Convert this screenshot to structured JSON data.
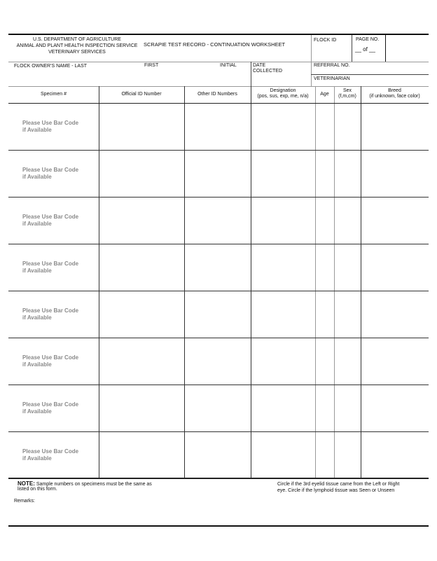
{
  "header": {
    "agency": [
      "U.S. DEPARTMENT OF AGRICULTURE",
      "ANIMAL AND PLANT HEALTH INSPECTION SERVICE",
      "VETERINARY SERVICES"
    ],
    "title": "SCRAPIE TEST RECORD - CONTINUATION WORKSHEET",
    "flock_id_label": "FLOCK  ID",
    "page_no_label": "PAGE NO.",
    "page_of": "__ of __"
  },
  "owner": {
    "last_label": "FLOCK OWNER'S NAME - LAST",
    "first_label": "FIRST",
    "initial_label": "INITIAL",
    "date_label_1": "DATE",
    "date_label_2": "COLLECTED",
    "referral_label": "REFERRAL NO.",
    "veterinarian_label": "VETERINARIAN"
  },
  "columns": [
    {
      "l1": "Specimen #",
      "l2": ""
    },
    {
      "l1": "Official ID Number",
      "l2": ""
    },
    {
      "l1": "Other ID Numbers",
      "l2": ""
    },
    {
      "l1": "Designation",
      "l2": "(pos, sus, exp, me, n/a)"
    },
    {
      "l1": "Age",
      "l2": ""
    },
    {
      "l1": "Sex",
      "l2": "(f,m,cm)"
    },
    {
      "l1": "Breed",
      "l2": "(if unknown, face color)"
    }
  ],
  "rows": [
    {
      "l1": "Please Use Bar Code",
      "l2": "if Available"
    },
    {
      "l1": "Please Use Bar Code",
      "l2": "if Available"
    },
    {
      "l1": "Please Use Bar Code",
      "l2": "if Available"
    },
    {
      "l1": "Please Use Bar Code",
      "l2": "if Available"
    },
    {
      "l1": "Please Use Bar Code",
      "l2": "if Available"
    },
    {
      "l1": "Please Use Bar Code",
      "l2": "if Available"
    },
    {
      "l1": "Please Use Bar Code",
      "l2": "if Available"
    },
    {
      "l1": "Please Use Bar Code",
      "l2": "if Available"
    }
  ],
  "footer": {
    "note_label": "NOTE:",
    "note_1": "Sample numbers on specimens must be the same as",
    "note_2": "listed on this form.",
    "circle_1": "Circle if the 3rd eyelid tissue came from the Left or Right",
    "circle_2": "eye.  Circle if the lymphoid tissue was Seen or Unseen",
    "remarks_label": "Remarks:"
  }
}
